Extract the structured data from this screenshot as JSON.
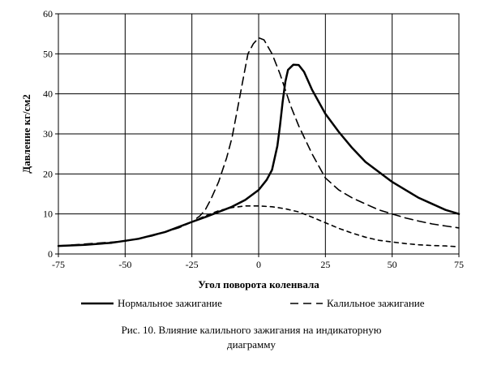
{
  "chart_data": {
    "type": "line",
    "xlabel": "Угол поворота коленвала",
    "ylabel": "Давление кг/см2",
    "xlim": [
      -75,
      75
    ],
    "ylim": [
      0,
      60
    ],
    "x_ticks": [
      -75,
      -50,
      -25,
      0,
      25,
      50,
      75
    ],
    "y_ticks": [
      0,
      10,
      20,
      30,
      40,
      50,
      60
    ],
    "grid": true,
    "legend_position": "bottom",
    "series": [
      {
        "name": "Нормальное зажигание",
        "style": "solid",
        "color": "#000000",
        "points": [
          [
            -75,
            2
          ],
          [
            -65,
            2.3
          ],
          [
            -55,
            2.8
          ],
          [
            -45,
            3.8
          ],
          [
            -35,
            5.5
          ],
          [
            -25,
            8
          ],
          [
            -20,
            9.2
          ],
          [
            -15,
            10.5
          ],
          [
            -10,
            11.8
          ],
          [
            -5,
            13.5
          ],
          [
            0,
            16
          ],
          [
            3,
            18.5
          ],
          [
            5,
            21
          ],
          [
            7,
            27
          ],
          [
            8,
            32
          ],
          [
            9,
            38
          ],
          [
            10,
            43
          ],
          [
            11,
            46
          ],
          [
            13,
            47.3
          ],
          [
            15,
            47.2
          ],
          [
            17,
            45.5
          ],
          [
            20,
            41
          ],
          [
            25,
            35
          ],
          [
            30,
            30.5
          ],
          [
            35,
            26.5
          ],
          [
            40,
            23
          ],
          [
            45,
            20.5
          ],
          [
            50,
            18
          ],
          [
            55,
            16
          ],
          [
            60,
            14
          ],
          [
            65,
            12.5
          ],
          [
            70,
            11
          ],
          [
            75,
            10
          ]
        ]
      },
      {
        "name": "Калильное зажигание",
        "style": "dash",
        "color": "#000000",
        "points": [
          [
            -75,
            2
          ],
          [
            -50,
            3.2
          ],
          [
            -40,
            4.5
          ],
          [
            -30,
            6.5
          ],
          [
            -25,
            8
          ],
          [
            -22,
            9.5
          ],
          [
            -20,
            11
          ],
          [
            -18,
            13.5
          ],
          [
            -15,
            18
          ],
          [
            -12,
            24
          ],
          [
            -10,
            29
          ],
          [
            -8,
            36
          ],
          [
            -6,
            43
          ],
          [
            -4,
            50
          ],
          [
            -2,
            52.5
          ],
          [
            0,
            54
          ],
          [
            2,
            53.5
          ],
          [
            5,
            50
          ],
          [
            8,
            45
          ],
          [
            10,
            41
          ],
          [
            12,
            37
          ],
          [
            15,
            32
          ],
          [
            20,
            25
          ],
          [
            25,
            19
          ],
          [
            30,
            16
          ],
          [
            35,
            14
          ],
          [
            40,
            12.5
          ],
          [
            45,
            11
          ],
          [
            50,
            10
          ],
          [
            55,
            9
          ],
          [
            60,
            8.2
          ],
          [
            65,
            7.5
          ],
          [
            70,
            7
          ],
          [
            75,
            6.5
          ]
        ]
      },
      {
        "name": "",
        "style": "short-dash",
        "color": "#000000",
        "points": [
          [
            -25,
            8
          ],
          [
            -20,
            9.5
          ],
          [
            -15,
            10.8
          ],
          [
            -10,
            11.6
          ],
          [
            -5,
            12
          ],
          [
            0,
            12
          ],
          [
            5,
            11.8
          ],
          [
            10,
            11.3
          ],
          [
            15,
            10.5
          ],
          [
            20,
            9.2
          ],
          [
            25,
            7.8
          ],
          [
            30,
            6.4
          ],
          [
            35,
            5.2
          ],
          [
            40,
            4.2
          ],
          [
            45,
            3.4
          ],
          [
            50,
            3
          ],
          [
            55,
            2.6
          ],
          [
            60,
            2.3
          ],
          [
            65,
            2.1
          ],
          [
            70,
            2
          ],
          [
            75,
            1.8
          ]
        ]
      }
    ]
  },
  "caption": {
    "line1": "Рис. 10. Влияние калильного зажигания на индикаторную",
    "line2": "диаграмму"
  }
}
